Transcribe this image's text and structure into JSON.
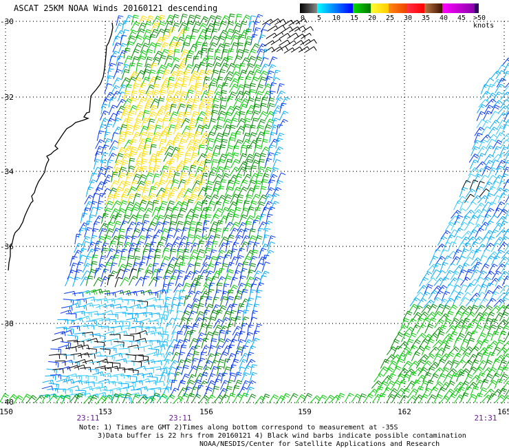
{
  "title": "ASCAT 25KM NOAA Winds 20160121 descending",
  "legend": {
    "segments": [
      {
        "from": "#000000",
        "to": "#888888"
      },
      {
        "from": "#00ffff",
        "to": "#0000ff"
      },
      {
        "from": "#00dd00",
        "to": "#007700"
      },
      {
        "from": "#ffff33",
        "to": "#ffcc00"
      },
      {
        "from": "#ff8811",
        "to": "#ee4400"
      },
      {
        "from": "#ff3344",
        "to": "#ff0000"
      },
      {
        "from": "#bb7744",
        "to": "#441100"
      },
      {
        "from": "#ff00ff",
        "to": "#8800aa"
      },
      {
        "from": "#330066",
        "to": "#330066"
      }
    ],
    "labels": [
      "0",
      "5",
      "10",
      "15",
      "20",
      "25",
      "30",
      "35",
      "40",
      "45",
      ">50 knots"
    ]
  },
  "axes": {
    "lat_labels": [
      "-30",
      "-32",
      "-34",
      "-36",
      "-38",
      "-40"
    ],
    "lon_labels": [
      "150",
      "153",
      "156",
      "159",
      "162",
      "165"
    ]
  },
  "times": [
    "23:11",
    "23:11",
    "21:31"
  ],
  "notes": [
    "Note: 1) Times are GMT 2)Times along bottom correspond to measurement at -35S",
    "3)Data buffer is 22 hrs from 20160121 4) Black wind barbs indicate possible contamination",
    "NOAA/NESDIS/Center for Satellite Applications and Research"
  ],
  "barb_colors": {
    "contaminated": "#000000",
    "light_cyan": "#33ccff",
    "cyan": "#00aaff",
    "blue": "#0033ff",
    "green": "#00cc00",
    "dark_green": "#008800",
    "yellow": "#ffdd00",
    "coastline": "#000000"
  }
}
